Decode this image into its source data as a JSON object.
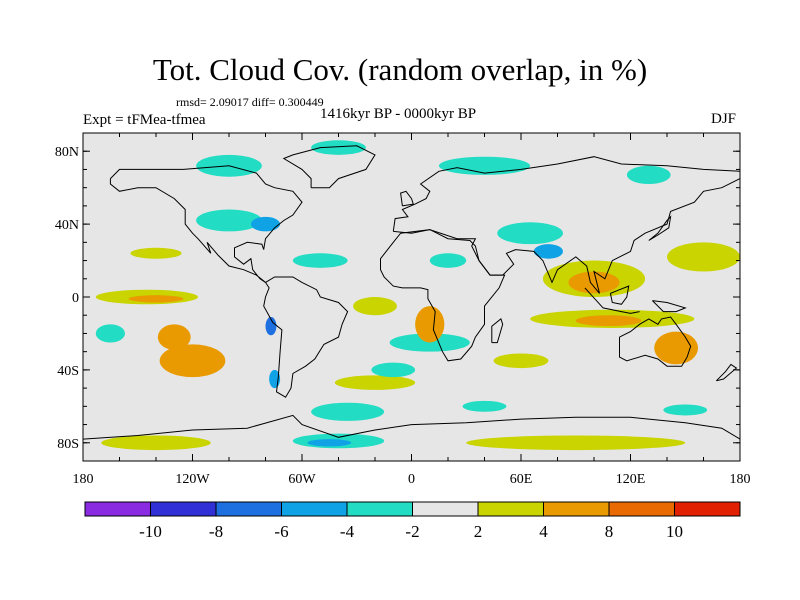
{
  "title": "Tot. Cloud Cov. (random overlap, in %)",
  "stats_line": "rmsd= 2.09017 diff= 0.300449",
  "experiment_label": "Expt = tFMea-tfmea",
  "period_label": "1416kyr BP - 0000kyr BP",
  "season_label": "DJF",
  "map": {
    "lat_ticks": [
      {
        "lat": 80,
        "label": "80N"
      },
      {
        "lat": 40,
        "label": "40N"
      },
      {
        "lat": 0,
        "label": "0"
      },
      {
        "lat": -40,
        "label": "40S"
      },
      {
        "lat": -80,
        "label": "80S"
      }
    ],
    "lon_ticks": [
      {
        "lon": -180,
        "label": "180"
      },
      {
        "lon": -120,
        "label": "120W"
      },
      {
        "lon": -60,
        "label": "60W"
      },
      {
        "lon": 0,
        "label": "0"
      },
      {
        "lon": 60,
        "label": "60E"
      },
      {
        "lon": 120,
        "label": "120E"
      },
      {
        "lon": 180,
        "label": "180"
      }
    ],
    "background_color": "#e6e6e6",
    "coastline_color": "#000000",
    "anomaly_regions": [
      {
        "lon": -120,
        "lat": -35,
        "rx": 18,
        "ry": 9,
        "level": "4-8"
      },
      {
        "lon": -130,
        "lat": -22,
        "rx": 9,
        "ry": 7,
        "level": "4-8"
      },
      {
        "lon": -145,
        "lat": 0,
        "rx": 28,
        "ry": 4,
        "level": "2-4"
      },
      {
        "lon": -140,
        "lat": -1,
        "rx": 15,
        "ry": 2,
        "level": "4-8"
      },
      {
        "lon": 100,
        "lat": 8,
        "rx": 14,
        "ry": 6,
        "level": "4-8"
      },
      {
        "lon": 100,
        "lat": 10,
        "rx": 28,
        "ry": 10,
        "level": "2-4"
      },
      {
        "lon": 110,
        "lat": -12,
        "rx": 45,
        "ry": 5,
        "level": "2-4"
      },
      {
        "lon": 108,
        "lat": -13,
        "rx": 18,
        "ry": 3,
        "level": "4-8"
      },
      {
        "lon": 145,
        "lat": -28,
        "rx": 12,
        "ry": 9,
        "level": "4-8"
      },
      {
        "lon": 160,
        "lat": 22,
        "rx": 20,
        "ry": 8,
        "level": "2-4"
      },
      {
        "lon": 10,
        "lat": -15,
        "rx": 8,
        "ry": 10,
        "level": "4-8"
      },
      {
        "lon": -20,
        "lat": -5,
        "rx": 12,
        "ry": 5,
        "level": "2-4"
      },
      {
        "lon": -140,
        "lat": 24,
        "rx": 14,
        "ry": 3,
        "level": "2-4"
      },
      {
        "lon": -20,
        "lat": -47,
        "rx": 22,
        "ry": 4,
        "level": "2-4"
      },
      {
        "lon": 60,
        "lat": -35,
        "rx": 15,
        "ry": 4,
        "level": "2-4"
      },
      {
        "lon": -140,
        "lat": -80,
        "rx": 30,
        "ry": 4,
        "level": "2-4"
      },
      {
        "lon": 90,
        "lat": -80,
        "rx": 60,
        "ry": 4,
        "level": "2-4"
      },
      {
        "lon": 65,
        "lat": 35,
        "rx": 18,
        "ry": 6,
        "level": "-4--2"
      },
      {
        "lon": 75,
        "lat": 25,
        "rx": 8,
        "ry": 4,
        "level": "-6--4"
      },
      {
        "lon": 20,
        "lat": 20,
        "rx": 10,
        "ry": 4,
        "level": "-4--2"
      },
      {
        "lon": 10,
        "lat": -25,
        "rx": 22,
        "ry": 5,
        "level": "-4--2"
      },
      {
        "lon": -100,
        "lat": 42,
        "rx": 18,
        "ry": 6,
        "level": "-4--2"
      },
      {
        "lon": -80,
        "lat": 40,
        "rx": 8,
        "ry": 4,
        "level": "-6--4"
      },
      {
        "lon": -50,
        "lat": 20,
        "rx": 15,
        "ry": 4,
        "level": "-4--2"
      },
      {
        "lon": -100,
        "lat": 72,
        "rx": 18,
        "ry": 6,
        "level": "-4--2"
      },
      {
        "lon": -40,
        "lat": 82,
        "rx": 15,
        "ry": 4,
        "level": "-4--2"
      },
      {
        "lon": 40,
        "lat": 72,
        "rx": 25,
        "ry": 5,
        "level": "-4--2"
      },
      {
        "lon": 130,
        "lat": 67,
        "rx": 12,
        "ry": 5,
        "level": "-4--2"
      },
      {
        "lon": -165,
        "lat": -20,
        "rx": 8,
        "ry": 5,
        "level": "-4--2"
      },
      {
        "lon": -10,
        "lat": -40,
        "rx": 12,
        "ry": 4,
        "level": "-4--2"
      },
      {
        "lon": -35,
        "lat": -63,
        "rx": 20,
        "ry": 5,
        "level": "-4--2"
      },
      {
        "lon": -40,
        "lat": -79,
        "rx": 25,
        "ry": 4,
        "level": "-4--2"
      },
      {
        "lon": -45,
        "lat": -80,
        "rx": 12,
        "ry": 2,
        "level": "-6--4"
      },
      {
        "lon": 40,
        "lat": -60,
        "rx": 12,
        "ry": 3,
        "level": "-4--2"
      },
      {
        "lon": 150,
        "lat": -62,
        "rx": 12,
        "ry": 3,
        "level": "-4--2"
      },
      {
        "lon": -75,
        "lat": -45,
        "rx": 3,
        "ry": 5,
        "level": "-6--4"
      },
      {
        "lon": -77,
        "lat": -16,
        "rx": 3,
        "ry": 5,
        "level": "-8--6"
      }
    ]
  },
  "colorbar": {
    "colors": [
      "#8a2be2",
      "#3030d6",
      "#1e6fe0",
      "#0fa3e6",
      "#22dcc4",
      "#e6e6e6",
      "#c9d400",
      "#e99a00",
      "#e86a00",
      "#e02000"
    ],
    "labels": [
      "-10",
      "-8",
      "-6",
      "-4",
      "-2",
      "2",
      "4",
      "8",
      "10"
    ]
  }
}
